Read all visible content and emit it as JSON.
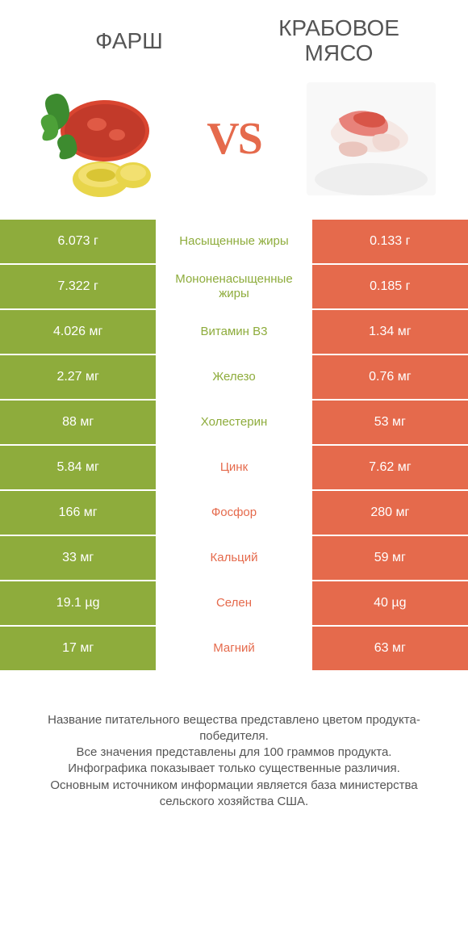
{
  "header": {
    "left_title": "Фарш",
    "right_title_line1": "Крабовое",
    "right_title_line2": "мясо",
    "vs_label": "VS"
  },
  "colors": {
    "left": "#8eac3c",
    "right": "#e56a4c",
    "mid_bg": "#ffffff",
    "text": "#ffffff"
  },
  "rows": [
    {
      "label": "Насыщенные жиры",
      "left": "6.073 г",
      "right": "0.133 г",
      "winner": "left"
    },
    {
      "label": "Мононенасыщенные жиры",
      "left": "7.322 г",
      "right": "0.185 г",
      "winner": "left"
    },
    {
      "label": "Витамин B3",
      "left": "4.026 мг",
      "right": "1.34 мг",
      "winner": "left"
    },
    {
      "label": "Железо",
      "left": "2.27 мг",
      "right": "0.76 мг",
      "winner": "left"
    },
    {
      "label": "Холестерин",
      "left": "88 мг",
      "right": "53 мг",
      "winner": "left"
    },
    {
      "label": "Цинк",
      "left": "5.84 мг",
      "right": "7.62 мг",
      "winner": "right"
    },
    {
      "label": "Фосфор",
      "left": "166 мг",
      "right": "280 мг",
      "winner": "right"
    },
    {
      "label": "Кальций",
      "left": "33 мг",
      "right": "59 мг",
      "winner": "right"
    },
    {
      "label": "Селен",
      "left": "19.1 µg",
      "right": "40 µg",
      "winner": "right"
    },
    {
      "label": "Магний",
      "left": "17 мг",
      "right": "63 мг",
      "winner": "right"
    }
  ],
  "footer": {
    "line1": "Название питательного вещества представлено цветом продукта-победителя.",
    "line2": "Все значения представлены для 100 граммов продукта.",
    "line3": "Инфографика показывает только существенные различия.",
    "line4": "Основным источником информации является база министерства сельского хозяйства США."
  }
}
